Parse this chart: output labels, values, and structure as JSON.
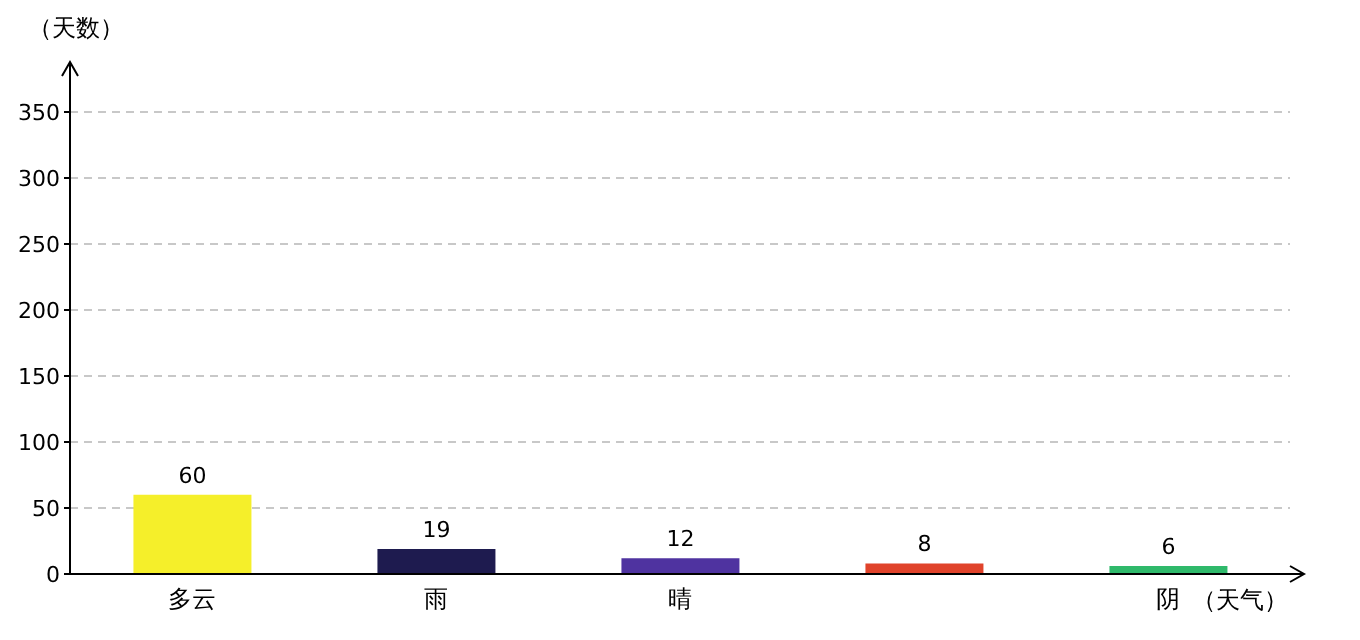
{
  "chart_data": {
    "type": "bar",
    "xlabel": "（天气）",
    "ylabel": "（天数）",
    "categories": [
      "多云",
      "雨",
      "晴",
      null,
      "阴"
    ],
    "values": [
      60,
      19,
      12,
      8,
      6
    ],
    "colors": [
      "#f5ef2a",
      "#1e1b4f",
      "#4f33a0",
      "#e0432b",
      "#2fb96b"
    ],
    "ylim": [
      0,
      350
    ],
    "yticks": [
      0,
      50,
      100,
      150,
      200,
      250,
      300,
      350
    ],
    "grid": "y",
    "data_labels": true
  }
}
